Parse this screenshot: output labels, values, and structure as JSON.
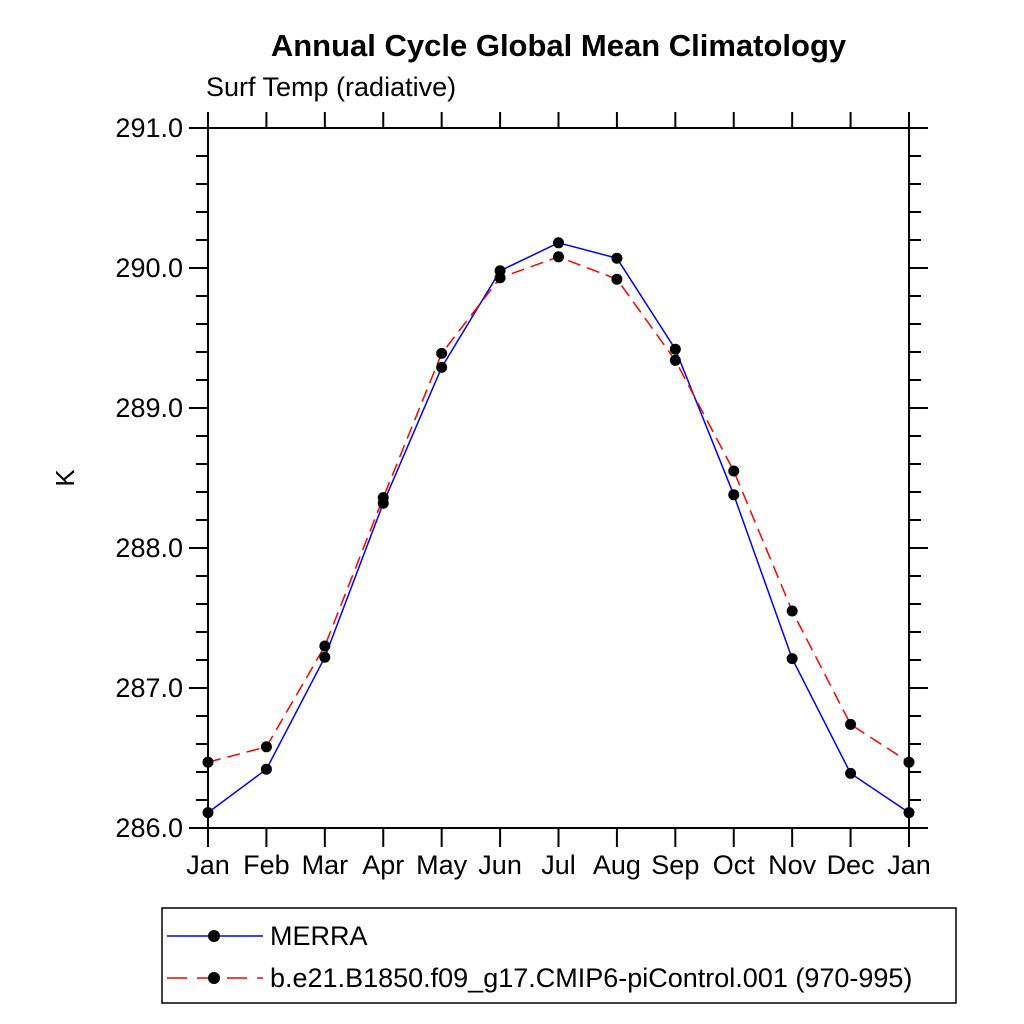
{
  "chart_data": {
    "type": "line",
    "title": "Annual Cycle Global Mean Climatology",
    "subtitle": "Surf Temp (radiative)",
    "ylabel": "K",
    "categories": [
      "Jan",
      "Feb",
      "Mar",
      "Apr",
      "May",
      "Jun",
      "Jul",
      "Aug",
      "Sep",
      "Oct",
      "Nov",
      "Dec",
      "Jan"
    ],
    "series": [
      {
        "name": "MERRA",
        "color": "#0000ff",
        "line_style": "solid",
        "marker": "black-dot",
        "values": [
          286.11,
          286.42,
          287.22,
          288.32,
          289.29,
          289.98,
          290.18,
          290.07,
          289.42,
          288.38,
          287.21,
          286.39,
          286.11
        ]
      },
      {
        "name": "b.e21.B1850.f09_g17.CMIP6-piControl.001 (970-995)",
        "color": "#ff0000",
        "line_style": "dashed",
        "marker": "black-dot",
        "values": [
          286.47,
          286.58,
          287.3,
          288.36,
          289.39,
          289.93,
          290.08,
          289.92,
          289.34,
          288.55,
          287.55,
          286.74,
          286.47
        ]
      }
    ],
    "ylim": [
      286.0,
      291.0
    ],
    "ytick_interval": 1.0,
    "yminor_interval": 0.2,
    "ytick_label_format": "one-decimal",
    "marker_color": "#000000",
    "axis_color": "#000000",
    "grid": "off",
    "legend_position": "bottom-left-box"
  }
}
